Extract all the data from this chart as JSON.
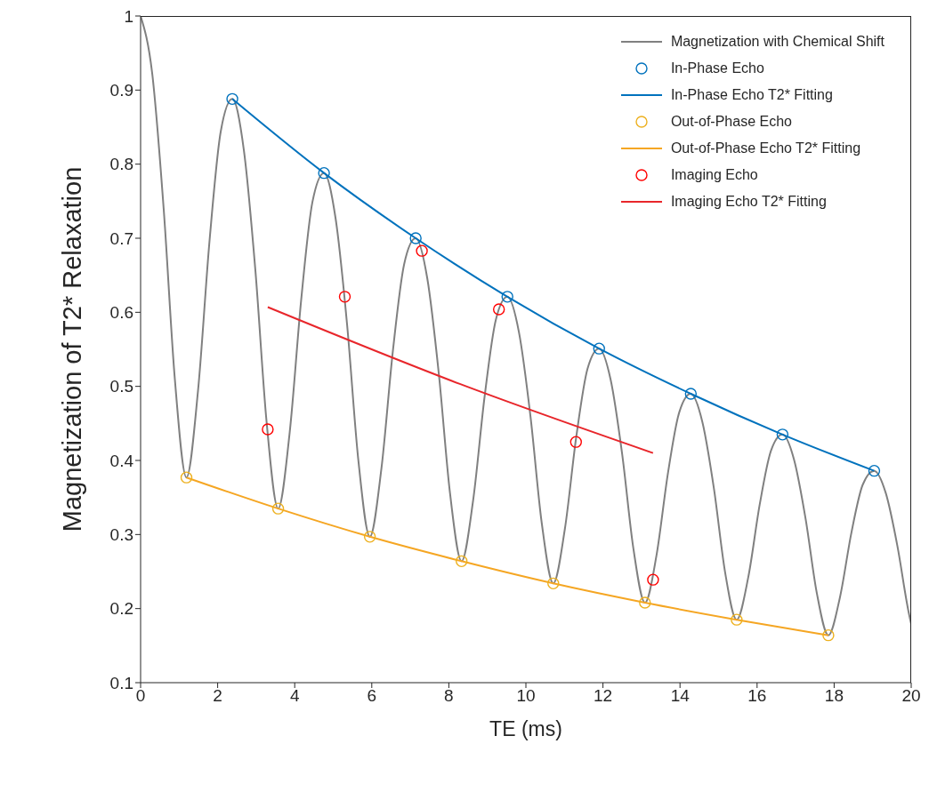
{
  "chart_data": {
    "type": "line",
    "xlabel": "TE (ms)",
    "ylabel": "Magnetization of T2* Relaxation",
    "xlim": [
      0,
      20
    ],
    "xticks": [
      0,
      2,
      4,
      6,
      8,
      10,
      12,
      14,
      16,
      18,
      20
    ],
    "ylim": [
      0.1,
      1
    ],
    "yticks": [
      0.1,
      0.2,
      0.3,
      0.4,
      0.5,
      0.6,
      0.7,
      0.8,
      0.9,
      1
    ],
    "grid": false,
    "legend": "top right",
    "line_style": "solid",
    "series": [
      {
        "name": "Magnetization with Chemical Shift",
        "marker": "none",
        "color": "#808080",
        "x": [
          0,
          0.3,
          0.6,
          0.89,
          1.19,
          1.49,
          1.79,
          2.08,
          2.38,
          2.68,
          2.98,
          3.27,
          3.57,
          3.87,
          4.17,
          4.46,
          4.76,
          5.06,
          5.36,
          5.65,
          5.95,
          6.25,
          6.55,
          6.84,
          7.14,
          7.44,
          7.74,
          8.03,
          8.33,
          8.63,
          8.93,
          9.22,
          9.52,
          9.82,
          10.12,
          10.41,
          10.71,
          11.01,
          11.31,
          11.6,
          11.9,
          12.2,
          12.5,
          12.79,
          13.09,
          13.39,
          13.69,
          13.98,
          14.28,
          14.58,
          14.88,
          15.17,
          15.47,
          15.77,
          16.07,
          16.36,
          16.66,
          16.96,
          17.26,
          17.55,
          17.85,
          18.15,
          18.45,
          18.74,
          19.04,
          19.34,
          19.64,
          19.93,
          20
        ],
        "values": [
          1,
          0.923,
          0.739,
          0.509,
          0.377,
          0.494,
          0.697,
          0.844,
          0.888,
          0.819,
          0.656,
          0.452,
          0.335,
          0.438,
          0.618,
          0.749,
          0.788,
          0.727,
          0.583,
          0.401,
          0.297,
          0.389,
          0.549,
          0.665,
          0.7,
          0.646,
          0.517,
          0.356,
          0.264,
          0.346,
          0.487,
          0.59,
          0.621,
          0.573,
          0.459,
          0.316,
          0.234,
          0.307,
          0.433,
          0.524,
          0.551,
          0.509,
          0.408,
          0.281,
          0.208,
          0.272,
          0.384,
          0.465,
          0.49,
          0.452,
          0.362,
          0.249,
          0.185,
          0.242,
          0.341,
          0.413,
          0.435,
          0.401,
          0.321,
          0.221,
          0.164,
          0.215,
          0.303,
          0.367,
          0.386,
          0.356,
          0.285,
          0.196,
          0.179
        ]
      },
      {
        "name": "In-Phase Echo",
        "type": "scatter",
        "marker": "circle",
        "color": "#0072bd",
        "x": [
          2.38,
          4.76,
          7.14,
          9.52,
          11.9,
          14.28,
          16.66,
          19.04
        ],
        "values": [
          0.888,
          0.788,
          0.7,
          0.621,
          0.551,
          0.49,
          0.435,
          0.386
        ]
      },
      {
        "name": "In-Phase Echo T2* Fitting",
        "marker": "none",
        "color": "#0072bd",
        "x": [
          2.38,
          4.76,
          7.14,
          9.52,
          11.9,
          14.28,
          16.66,
          19.04
        ],
        "values": [
          0.888,
          0.788,
          0.7,
          0.621,
          0.551,
          0.49,
          0.435,
          0.386
        ]
      },
      {
        "name": "Out-of-Phase Echo",
        "type": "scatter",
        "marker": "circle",
        "color": "#edb120",
        "x": [
          1.19,
          3.57,
          5.95,
          8.33,
          10.71,
          13.09,
          15.47,
          17.85
        ],
        "values": [
          0.377,
          0.335,
          0.297,
          0.264,
          0.234,
          0.208,
          0.185,
          0.164
        ]
      },
      {
        "name": "Out-of-Phase Echo T2* Fitting",
        "marker": "none",
        "color": "#f5a623",
        "x": [
          1.19,
          3.57,
          5.95,
          8.33,
          10.71,
          13.09,
          15.47,
          17.85
        ],
        "values": [
          0.377,
          0.335,
          0.297,
          0.264,
          0.234,
          0.208,
          0.185,
          0.164
        ]
      },
      {
        "name": "Imaging Echo",
        "type": "scatter",
        "marker": "circle",
        "color": "#ff0000",
        "x": [
          3.3,
          5.3,
          7.3,
          9.3,
          11.3,
          13.3
        ],
        "values": [
          0.442,
          0.621,
          0.683,
          0.604,
          0.425,
          0.239
        ]
      },
      {
        "name": "Imaging Echo T2* Fitting",
        "marker": "none",
        "color": "#e8262b",
        "x": [
          3.3,
          8.3,
          13.3
        ],
        "values": [
          0.607,
          0.503,
          0.41
        ]
      }
    ]
  }
}
